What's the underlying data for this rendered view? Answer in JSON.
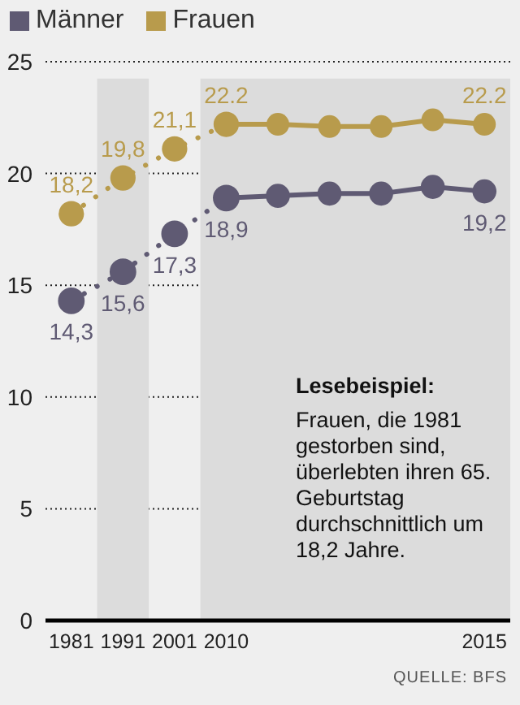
{
  "chart_data": {
    "type": "line",
    "categories": [
      "1981",
      "1991",
      "2001",
      "2010",
      null,
      null,
      null,
      null,
      "2015"
    ],
    "series": [
      {
        "name": "Männer",
        "color": "#5f5a73",
        "line_style": "dotted",
        "values": [
          14.3,
          15.6,
          17.3,
          18.9,
          null,
          null,
          null,
          null,
          null
        ],
        "value_labels": [
          "14,3",
          "15,6",
          "17,3",
          "18,9",
          null,
          null,
          null,
          null,
          null
        ]
      },
      {
        "name": "Frauen",
        "color": "#b89b4c",
        "line_style": "dotted",
        "values": [
          18.2,
          19.8,
          21.1,
          22.2,
          null,
          null,
          null,
          null,
          null
        ],
        "value_labels": [
          "18,2",
          "19,8",
          "21,1",
          "22.2",
          null,
          null,
          null,
          null,
          null
        ]
      },
      {
        "color": "#5f5a73",
        "line_style": "solid",
        "values": [
          null,
          null,
          null,
          18.9,
          19.0,
          19.1,
          19.1,
          19.4,
          19.2
        ],
        "value_labels": [
          null,
          null,
          null,
          null,
          null,
          null,
          null,
          null,
          "19,2"
        ]
      },
      {
        "color": "#b89b4c",
        "line_style": "solid",
        "values": [
          null,
          null,
          null,
          22.2,
          22.2,
          22.1,
          22.1,
          22.4,
          22.2
        ],
        "value_labels": [
          null,
          null,
          null,
          null,
          null,
          null,
          null,
          null,
          "22.2"
        ]
      }
    ],
    "ylim": [
      0,
      25
    ],
    "yticks": [
      0,
      5,
      10,
      15,
      20,
      25
    ],
    "grid": "y",
    "legend": "top left",
    "marker": "circle",
    "bands": [
      {
        "axis": "x",
        "from": "1991",
        "to": "1991",
        "color": "#dcdcdc"
      },
      {
        "axis": "x",
        "from": "2010",
        "to": "2015",
        "color": "#dcdcdc"
      }
    ],
    "annotations": [
      "Lesebeispiel:",
      "Frauen, die 1981 gestorben sind, überlebten ihren 65. Geburtstag durchschnittlich um 18,2 Jahre.",
      "QUELLE: BFS"
    ]
  }
}
